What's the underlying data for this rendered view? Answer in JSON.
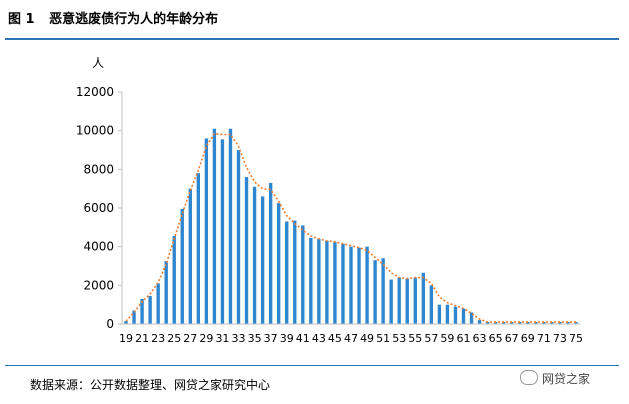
{
  "figure": {
    "label": "图 1",
    "title": "恶意逃废债行为人的年龄分布",
    "source": "数据来源：公开数据整理、网贷之家研究中心",
    "watermark": "网贷之家"
  },
  "chart_data": {
    "type": "bar",
    "title": "恶意逃废债行为人的年龄分布",
    "ylabel": "人",
    "xlabel": "",
    "ylim": [
      0,
      12000
    ],
    "yticks": [
      0,
      2000,
      4000,
      6000,
      8000,
      10000,
      12000
    ],
    "grid": false,
    "legend": "none",
    "bar_color": "#2e86d1",
    "trend_color": "#ed7d31",
    "categories": [
      "19",
      "20",
      "21",
      "22",
      "23",
      "24",
      "25",
      "26",
      "27",
      "28",
      "29",
      "30",
      "31",
      "32",
      "33",
      "34",
      "35",
      "36",
      "37",
      "38",
      "39",
      "40",
      "41",
      "42",
      "43",
      "44",
      "45",
      "46",
      "47",
      "48",
      "49",
      "50",
      "51",
      "52",
      "53",
      "54",
      "55",
      "56",
      "57",
      "58",
      "59",
      "60",
      "61",
      "62",
      "63",
      "64",
      "65",
      "66",
      "67",
      "68",
      "69",
      "70",
      "71",
      "72",
      "73",
      "74",
      "75"
    ],
    "tick_labels": [
      "19",
      "21",
      "23",
      "25",
      "27",
      "29",
      "31",
      "33",
      "35",
      "37",
      "39",
      "41",
      "43",
      "45",
      "47",
      "49",
      "51",
      "53",
      "55",
      "57",
      "59",
      "61",
      "63",
      "65",
      "67",
      "69",
      "71",
      "73",
      "75"
    ],
    "series": [
      {
        "values": [
          150,
          700,
          1300,
          1450,
          2100,
          3250,
          4550,
          5950,
          7000,
          7800,
          9600,
          10100,
          9550,
          10100,
          9000,
          7600,
          7100,
          6600,
          7300,
          6250,
          5300,
          5350,
          5100,
          4450,
          4400,
          4300,
          4250,
          4150,
          4000,
          3950,
          4000,
          3300,
          3400,
          2300,
          2400,
          2350,
          2400,
          2650,
          2000,
          1000,
          1000,
          900,
          800,
          600,
          200,
          100,
          100,
          100,
          100,
          100,
          100,
          100,
          100,
          100,
          100,
          100,
          100
        ]
      },
      {
        "type": "trend",
        "values": [
          150,
          600,
          1150,
          1550,
          2150,
          3100,
          4400,
          5700,
          6900,
          7950,
          9200,
          9850,
          9800,
          9800,
          9200,
          8100,
          7350,
          7000,
          6950,
          6350,
          5600,
          5200,
          4850,
          4550,
          4400,
          4300,
          4250,
          4150,
          4050,
          3950,
          3800,
          3450,
          3100,
          2650,
          2400,
          2350,
          2400,
          2400,
          2100,
          1400,
          1100,
          950,
          800,
          550,
          250,
          100,
          100,
          100,
          100,
          100,
          100,
          100,
          100,
          100,
          100,
          100,
          100
        ]
      }
    ]
  }
}
